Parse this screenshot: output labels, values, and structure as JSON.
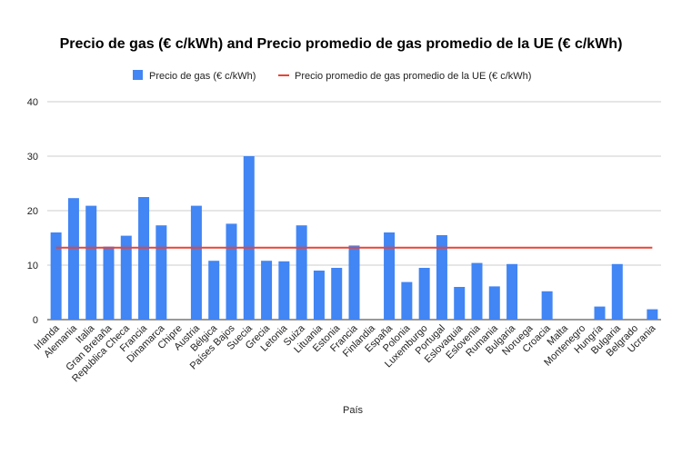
{
  "chart_data": {
    "type": "bar",
    "title": "Precio de gas (€ c/kWh) and Precio promedio de gas promedio de la UE (€ c/kWh)",
    "xlabel": "País",
    "ylabel": "",
    "ylim": [
      0,
      40
    ],
    "yticks": [
      "0",
      "10",
      "20",
      "30",
      "40"
    ],
    "grid": true,
    "legend_position": "top",
    "categories": [
      "Irlanda",
      "Alemania",
      "Italia",
      "Gran Bretaña",
      "Republica Checa",
      "Francia",
      "Dinamarca",
      "Chipre",
      "Austria",
      "Bélgica",
      "Países Bajos",
      "Suecia",
      "Grecia",
      "Letonia",
      "Suiza",
      "Lituania",
      "Estonia",
      "Francia",
      "Finlandia",
      "España",
      "Polonia",
      "Luxemburgo",
      "Portugal",
      "Eslovaquia",
      "Eslovenia",
      "Rumania",
      "Bulgaria",
      "Noruega",
      "Croacia",
      "Malta",
      "Montenegro",
      "Hungría",
      "Bulgaria",
      "Belgrado",
      "Ucrania"
    ],
    "series": [
      {
        "name": "Precio de gas (€ c/kWh)",
        "type": "bar",
        "color": "#4285f4",
        "values": [
          16.0,
          22.3,
          20.9,
          13.4,
          15.4,
          22.5,
          17.3,
          0,
          20.9,
          10.8,
          17.6,
          30.0,
          10.8,
          10.7,
          17.3,
          9.0,
          9.5,
          13.6,
          0,
          16.0,
          6.9,
          9.5,
          15.5,
          6.0,
          10.4,
          6.1,
          10.2,
          0,
          5.2,
          0,
          0,
          2.4,
          10.2,
          0,
          1.9
        ]
      },
      {
        "name": "Precio promedio de gas promedio de la UE (€ c/kWh)",
        "type": "line",
        "color": "#ea4335",
        "value": 13.2
      }
    ]
  }
}
